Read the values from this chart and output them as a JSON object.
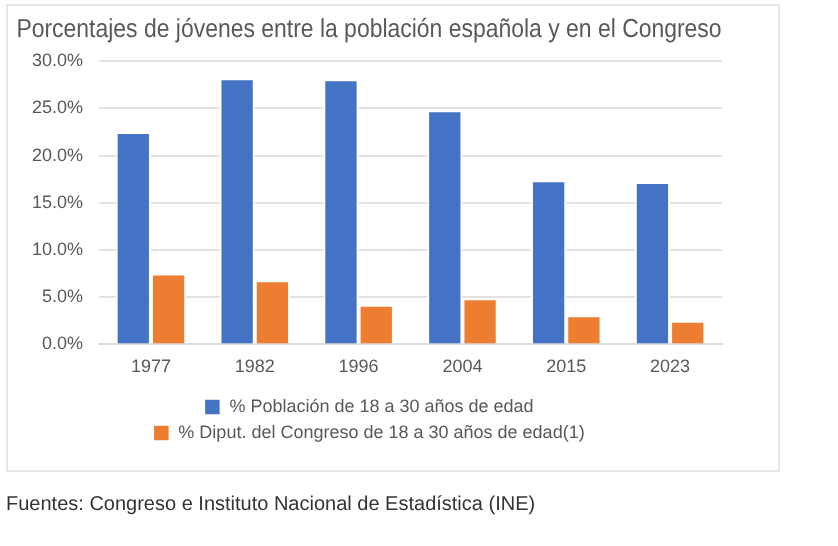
{
  "chart_data": {
    "type": "bar",
    "title": "Porcentajes de jóvenes entre la población española y en el Congreso",
    "categories": [
      "1977",
      "1982",
      "1996",
      "2004",
      "2015",
      "2023"
    ],
    "series": [
      {
        "name": "% Población de 18 a 30 años de edad",
        "color": "#4472c4",
        "values": [
          22.5,
          28.2,
          28.1,
          24.8,
          17.4,
          17.2
        ]
      },
      {
        "name": "% Diput. del Congreso de 18 a 30 años de edad(1)",
        "color": "#ed7d31",
        "values": [
          7.5,
          6.8,
          4.2,
          4.9,
          3.1,
          2.5
        ]
      }
    ],
    "ylim": [
      0,
      30
    ],
    "yticks": [
      {
        "value": 0,
        "label": "0.0%"
      },
      {
        "value": 5,
        "label": "5.0%"
      },
      {
        "value": 10,
        "label": "10.0%"
      },
      {
        "value": 15,
        "label": "15.0%"
      },
      {
        "value": 20,
        "label": "20.0%"
      },
      {
        "value": 25,
        "label": "25.0%"
      },
      {
        "value": 30,
        "label": "30.0%"
      }
    ],
    "grid": "y",
    "legend": "bottom",
    "annotations": [
      "Fuentes: Congreso e Instituto Nacional de Estadística (INE)"
    ]
  }
}
